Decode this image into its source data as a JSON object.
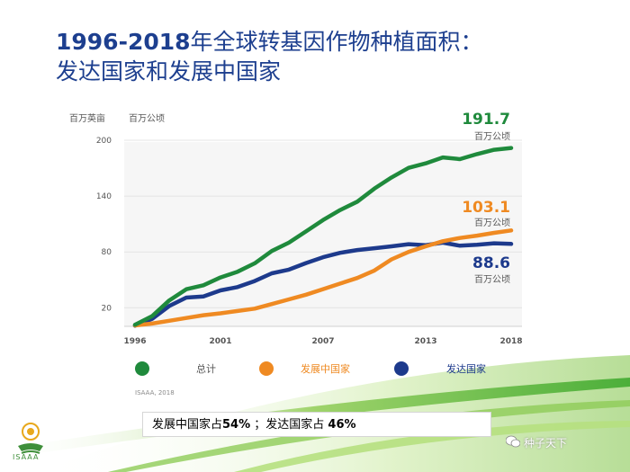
{
  "title": {
    "years": "1996-2018",
    "line1_rest": "年全球转基因作物种植面积：",
    "line2": "发达国家和发展中国家"
  },
  "chart_data": {
    "type": "line",
    "y_unit_left": "百万英亩",
    "y_unit_right": "百万公顷",
    "xlim": [
      1996,
      2018
    ],
    "ylim": [
      0,
      200
    ],
    "x_ticks": [
      "1996",
      "2001",
      "2007",
      "2013",
      "2018"
    ],
    "y_ticks": [
      "20",
      "80",
      "140",
      "200"
    ],
    "x": [
      1996,
      1997,
      1998,
      1999,
      2000,
      2001,
      2002,
      2003,
      2004,
      2005,
      2006,
      2007,
      2008,
      2009,
      2010,
      2011,
      2012,
      2013,
      2014,
      2015,
      2016,
      2017,
      2018
    ],
    "series": [
      {
        "name": "总计",
        "color": "#1f8a3c",
        "values": [
          1.7,
          11.0,
          27.8,
          39.9,
          44.2,
          52.6,
          58.7,
          67.7,
          81.0,
          90.0,
          102.0,
          114.3,
          125.0,
          134.0,
          148.0,
          160.0,
          170.3,
          175.2,
          181.5,
          179.7,
          185.1,
          189.8,
          191.7
        ],
        "end_label": "191.7",
        "end_unit": "百万公顷"
      },
      {
        "name": "发展中国家",
        "color": "#ef8a22",
        "values": [
          1.0,
          3.0,
          6.0,
          9.0,
          12.0,
          14.0,
          16.5,
          19.0,
          24.0,
          29.0,
          34.0,
          40.0,
          46.0,
          52.0,
          60.0,
          72.0,
          80.0,
          86.0,
          91.5,
          95.0,
          97.5,
          100.5,
          103.1
        ],
        "end_label": "103.1",
        "end_unit": "百万公顷"
      },
      {
        "name": "发达国家",
        "color": "#1d3a8c",
        "values": [
          0.7,
          8.0,
          21.8,
          30.9,
          32.2,
          38.6,
          42.2,
          48.7,
          57.0,
          61.0,
          68.0,
          74.3,
          79.0,
          82.0,
          84.0,
          86.0,
          88.3,
          87.2,
          90.0,
          86.7,
          87.6,
          89.3,
          88.6
        ],
        "end_label": "88.6",
        "end_unit": "百万公顷"
      }
    ]
  },
  "legend": [
    {
      "label": "总计",
      "color": "#1f8a3c"
    },
    {
      "label": "发展中国家",
      "color": "#ef8a22"
    },
    {
      "label": "发达国家",
      "color": "#1d3a8c"
    }
  ],
  "source": "ISAAA, 2018",
  "bottom_note": {
    "part1": "发展中国家占",
    "pct1": "54%",
    "sep": " ；",
    "part2": "发达国家占 ",
    "pct2": "46%"
  },
  "logo_text": "ISAAA",
  "watermark": "种子天下",
  "colors": {
    "title": "#1d3f8f",
    "green": "#1f8a3c",
    "orange": "#ef8a22",
    "navy": "#1d3a8c"
  }
}
